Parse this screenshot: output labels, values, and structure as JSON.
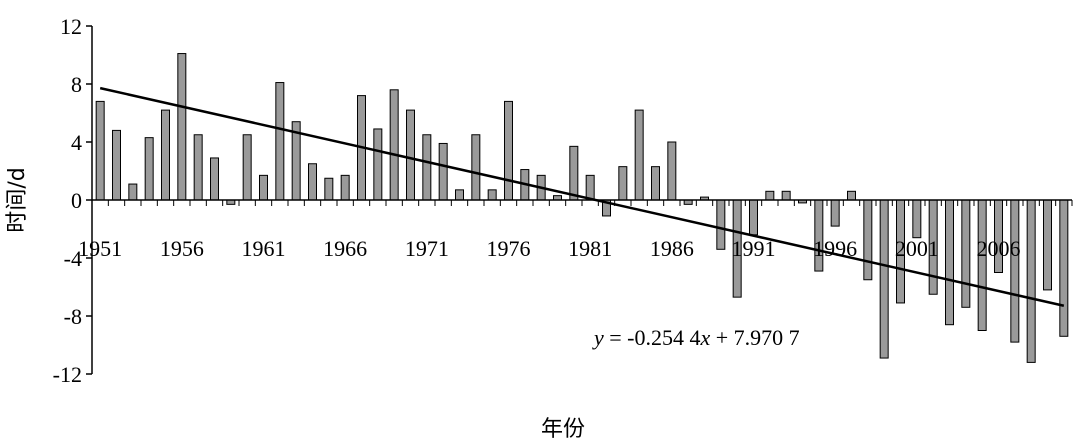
{
  "chart_data": {
    "type": "bar",
    "x": [
      1951,
      1952,
      1953,
      1954,
      1955,
      1956,
      1957,
      1958,
      1959,
      1960,
      1961,
      1962,
      1963,
      1964,
      1965,
      1966,
      1967,
      1968,
      1969,
      1970,
      1971,
      1972,
      1973,
      1974,
      1975,
      1976,
      1977,
      1978,
      1979,
      1980,
      1981,
      1982,
      1983,
      1984,
      1985,
      1986,
      1987,
      1988,
      1989,
      1990,
      1991,
      1992,
      1993,
      1994,
      1995,
      1996,
      1997,
      1998,
      1999,
      2000,
      2001,
      2002,
      2003,
      2004,
      2005,
      2006,
      2007,
      2008,
      2009,
      2010
    ],
    "values": [
      6.8,
      4.8,
      1.1,
      4.3,
      6.2,
      10.1,
      4.5,
      2.9,
      -0.3,
      4.5,
      1.7,
      8.1,
      5.4,
      2.5,
      1.5,
      1.7,
      7.2,
      4.9,
      7.6,
      6.2,
      4.5,
      3.9,
      0.7,
      4.5,
      0.7,
      6.8,
      2.1,
      1.7,
      0.3,
      3.7,
      1.7,
      -1.1,
      2.3,
      6.2,
      2.3,
      4.0,
      -0.3,
      0.2,
      -3.4,
      -6.7,
      -2.4,
      0.6,
      0.6,
      -0.2,
      -4.9,
      -1.8,
      0.6,
      -5.5,
      -10.9,
      -7.1,
      -2.6,
      -6.5,
      -8.6,
      -7.4,
      -9.0,
      -5.0,
      -9.8,
      -11.2,
      -6.2,
      -9.4
    ],
    "x_tick_labels": [
      "1951",
      "1956",
      "1961",
      "1966",
      "1971",
      "1976",
      "1981",
      "1986",
      "1991",
      "1996",
      "2001",
      "2006"
    ],
    "y_tick_labels": [
      "12",
      "8",
      "4",
      "0",
      "-4",
      "-8",
      "-12"
    ],
    "ylim": [
      -12,
      12
    ],
    "xlabel": "年份",
    "ylabel": "时间/d",
    "trendline": {
      "slope": -0.2544,
      "intercept": 7.9707,
      "label_parts": [
        "y",
        " = -0.254 4",
        "x",
        " + 7.970 7"
      ]
    },
    "bar_color": "#9a9a9a",
    "bar_stroke": "#000000",
    "line_color": "#000000"
  }
}
